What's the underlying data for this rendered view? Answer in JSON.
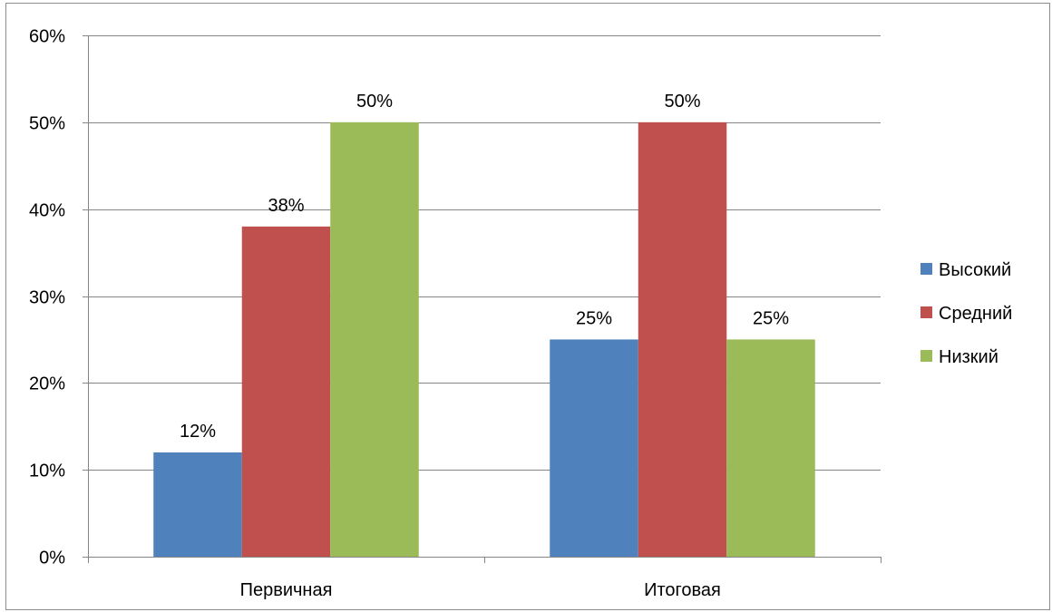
{
  "chart_data": {
    "type": "bar",
    "categories": [
      "Первичная",
      "Итоговая"
    ],
    "series": [
      {
        "name": "Высокий",
        "values": [
          0.12,
          0.25
        ],
        "labels": [
          "12%",
          "25%"
        ],
        "color": "#4f81bd"
      },
      {
        "name": "Средний",
        "values": [
          0.38,
          0.5
        ],
        "labels": [
          "38%",
          "50%"
        ],
        "color": "#c0504d"
      },
      {
        "name": "Низкий",
        "values": [
          0.5,
          0.25
        ],
        "labels": [
          "50%",
          "25%"
        ],
        "color": "#9bbb59"
      }
    ],
    "ylim": [
      0,
      0.6
    ],
    "ytick_values": [
      0,
      0.1,
      0.2,
      0.3,
      0.4,
      0.5,
      0.6
    ],
    "ytick_labels": [
      "0%",
      "10%",
      "20%",
      "30%",
      "40%",
      "50%",
      "60%"
    ],
    "grid": true,
    "legend": "right",
    "gridline_color": "#868686"
  }
}
